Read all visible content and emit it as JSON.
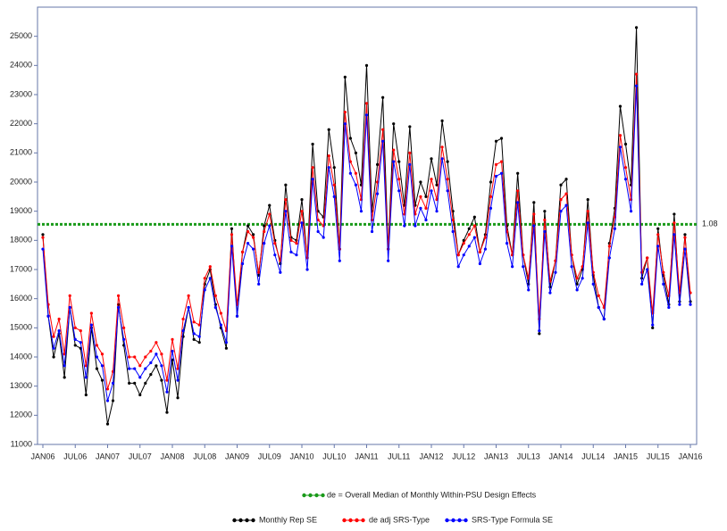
{
  "chart_data": {
    "type": "line",
    "categories": [
      "JAN06",
      null,
      null,
      null,
      null,
      null,
      "JUL06",
      null,
      null,
      null,
      null,
      null,
      "JAN07",
      null,
      null,
      null,
      null,
      null,
      "JUL07",
      null,
      null,
      null,
      null,
      null,
      "JAN08",
      null,
      null,
      null,
      null,
      null,
      "JUL08",
      null,
      null,
      null,
      null,
      null,
      "JAN09",
      null,
      null,
      null,
      null,
      null,
      "JUL09",
      null,
      null,
      null,
      null,
      null,
      "JAN10",
      null,
      null,
      null,
      null,
      null,
      "JUL10",
      null,
      null,
      null,
      null,
      null,
      "JAN11",
      null,
      null,
      null,
      null,
      null,
      "JUL11",
      null,
      null,
      null,
      null,
      null,
      "JAN12",
      null,
      null,
      null,
      null,
      null,
      "JUL12",
      null,
      null,
      null,
      null,
      null,
      "JAN13",
      null,
      null,
      null,
      null,
      null,
      "JUL13",
      null,
      null,
      null,
      null,
      null,
      "JAN14",
      null,
      null,
      null,
      null,
      null,
      "JUL14",
      null,
      null,
      null,
      null,
      null,
      "JAN15",
      null,
      null,
      null,
      null,
      null,
      "JUL15",
      null,
      null,
      null,
      null,
      null,
      "JAN16"
    ],
    "series": [
      {
        "name": "Monthly Rep SE",
        "color": "#000000",
        "values": [
          18200,
          15400,
          14000,
          14800,
          13300,
          15700,
          14400,
          14300,
          12700,
          15000,
          13600,
          13200,
          11700,
          12500,
          15800,
          14400,
          13100,
          13100,
          12700,
          13100,
          13400,
          13700,
          13200,
          12100,
          13900,
          12600,
          14700,
          15700,
          14600,
          14500,
          16500,
          17000,
          15800,
          15000,
          14300,
          18400,
          15400,
          17600,
          18500,
          18200,
          16800,
          18500,
          19200,
          18000,
          17200,
          19900,
          18100,
          18000,
          19400,
          17400,
          21300,
          19000,
          18800,
          21800,
          20500,
          17700,
          23600,
          21500,
          21000,
          19900,
          24000,
          19000,
          20600,
          22900,
          17700,
          22000,
          20700,
          19200,
          21900,
          19200,
          20000,
          19500,
          20800,
          19900,
          22100,
          20700,
          19000,
          17500,
          18000,
          18400,
          18800,
          17600,
          18200,
          20000,
          21400,
          21500,
          18500,
          17500,
          20300,
          17500,
          16500,
          19300,
          14800,
          19000,
          16400,
          17300,
          19900,
          20100,
          17500,
          16500,
          17000,
          19400,
          16800,
          15700,
          15300,
          17900,
          19100,
          22600,
          21300,
          19900,
          25300,
          16700,
          17400,
          15000,
          18400,
          16800,
          15800,
          18900,
          15900,
          18200,
          15900
        ]
      },
      {
        "name": "de adj SRS-Type",
        "color": "#ff0000",
        "values": [
          18100,
          15800,
          14700,
          15300,
          14100,
          16100,
          15000,
          14900,
          13700,
          15500,
          14400,
          14100,
          12900,
          13500,
          16100,
          15000,
          14000,
          14000,
          13700,
          14000,
          14200,
          14500,
          14100,
          13200,
          14600,
          13600,
          15300,
          16100,
          15200,
          15100,
          16700,
          17100,
          16100,
          15500,
          14900,
          18200,
          15800,
          17600,
          18300,
          18100,
          16900,
          18300,
          18900,
          17900,
          17300,
          19400,
          18000,
          17900,
          19000,
          17400,
          20500,
          18700,
          18500,
          20900,
          19900,
          17700,
          22400,
          20700,
          20300,
          19400,
          22700,
          18700,
          20000,
          21800,
          17700,
          21100,
          20100,
          18900,
          21000,
          18900,
          19500,
          19100,
          20100,
          19400,
          21200,
          20100,
          18700,
          17500,
          17900,
          18200,
          18500,
          17600,
          18100,
          19500,
          20600,
          20700,
          18300,
          17500,
          19700,
          17500,
          16700,
          18900,
          15300,
          18700,
          16600,
          17300,
          19400,
          19600,
          17500,
          16700,
          17100,
          19000,
          16900,
          16100,
          15700,
          17800,
          18800,
          21600,
          20500,
          19400,
          23700,
          16900,
          17400,
          15500,
          18200,
          16900,
          16100,
          18600,
          16200,
          18100,
          16200
        ]
      },
      {
        "name": "SRS-Type Formula SE",
        "color": "#0000ff",
        "values": [
          17700,
          15400,
          14300,
          14900,
          13700,
          15700,
          14600,
          14500,
          13300,
          15100,
          14000,
          13700,
          12500,
          13100,
          15700,
          14600,
          13600,
          13600,
          13300,
          13600,
          13800,
          14100,
          13700,
          12800,
          14200,
          13200,
          14900,
          15700,
          14800,
          14700,
          16300,
          16700,
          15700,
          15100,
          14500,
          17800,
          15400,
          17200,
          17900,
          17700,
          16500,
          17900,
          18500,
          17500,
          16900,
          19000,
          17600,
          17500,
          18600,
          17000,
          20100,
          18300,
          18100,
          20500,
          19500,
          17300,
          22000,
          20300,
          19900,
          19000,
          22300,
          18300,
          19600,
          21400,
          17300,
          20700,
          19700,
          18500,
          20600,
          18500,
          19100,
          18700,
          19700,
          19000,
          20800,
          19700,
          18300,
          17100,
          17500,
          17800,
          18100,
          17200,
          17700,
          19100,
          20200,
          20300,
          17900,
          17100,
          19300,
          17100,
          16300,
          18500,
          14900,
          18300,
          16200,
          16900,
          19000,
          19200,
          17100,
          16300,
          16700,
          18600,
          16500,
          15700,
          15300,
          17400,
          18400,
          21200,
          20100,
          19000,
          23300,
          16500,
          17000,
          15100,
          17800,
          16500,
          15700,
          18200,
          15800,
          17700,
          15800
        ]
      }
    ],
    "reference_line": {
      "name": "de = Overall Median of Monthly Within-PSU Design Effects",
      "value": 18550,
      "label": "1.08",
      "color": "#1a9a1a"
    },
    "ylim": [
      11000,
      26000
    ],
    "yticks": [
      11000,
      12000,
      13000,
      14000,
      15000,
      16000,
      17000,
      18000,
      19000,
      20000,
      21000,
      22000,
      23000,
      24000,
      25000
    ]
  }
}
